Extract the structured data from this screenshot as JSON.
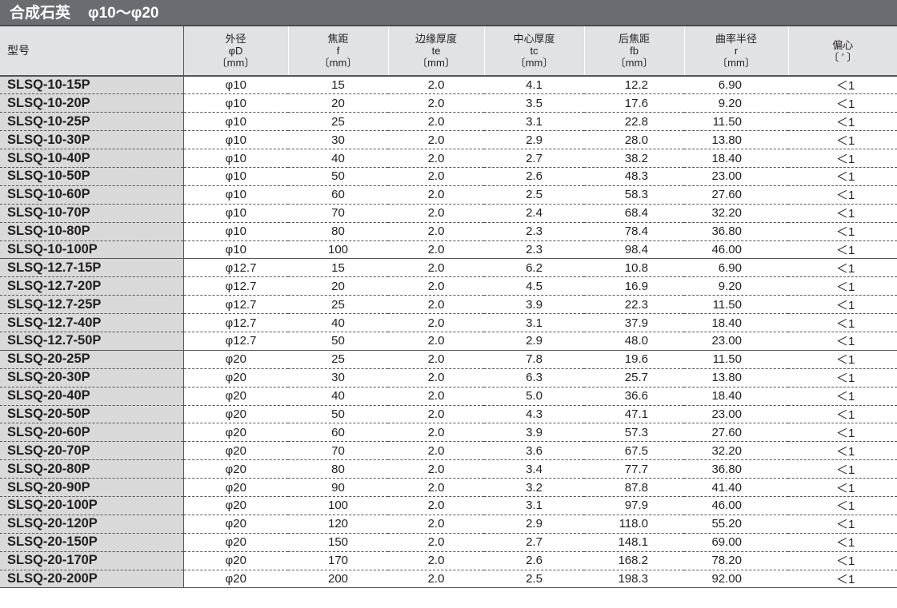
{
  "title": {
    "material": "合成石英",
    "range": "φ10～φ20"
  },
  "headers": [
    {
      "line1": "型号"
    },
    {
      "line1": "外径",
      "line2": "φD",
      "line3": "〔mm〕"
    },
    {
      "line1": "焦距",
      "line2": "f",
      "line3": "〔mm〕"
    },
    {
      "line1": "边缘厚度",
      "line2": "te",
      "line3": "〔mm〕"
    },
    {
      "line1": "中心厚度",
      "line2": "tc",
      "line3": "〔mm〕"
    },
    {
      "line1": "后焦距",
      "line2": "fb",
      "line3": "〔mm〕"
    },
    {
      "line1": "曲率半径",
      "line2": "r",
      "line3": "〔mm〕"
    },
    {
      "line1": "偏心",
      "line2": "〔 ′ 〕"
    }
  ],
  "rows": [
    [
      "SLSQ-10-15P",
      "φ10",
      "15",
      "2.0",
      "4.1",
      "12.2",
      "6.90",
      "＜1"
    ],
    [
      "SLSQ-10-20P",
      "φ10",
      "20",
      "2.0",
      "3.5",
      "17.6",
      "9.20",
      "＜1"
    ],
    [
      "SLSQ-10-25P",
      "φ10",
      "25",
      "2.0",
      "3.1",
      "22.8",
      "11.50",
      "＜1"
    ],
    [
      "SLSQ-10-30P",
      "φ10",
      "30",
      "2.0",
      "2.9",
      "28.0",
      "13.80",
      "＜1"
    ],
    [
      "SLSQ-10-40P",
      "φ10",
      "40",
      "2.0",
      "2.7",
      "38.2",
      "18.40",
      "＜1"
    ],
    [
      "SLSQ-10-50P",
      "φ10",
      "50",
      "2.0",
      "2.6",
      "48.3",
      "23.00",
      "＜1"
    ],
    [
      "SLSQ-10-60P",
      "φ10",
      "60",
      "2.0",
      "2.5",
      "58.3",
      "27.60",
      "＜1"
    ],
    [
      "SLSQ-10-70P",
      "φ10",
      "70",
      "2.0",
      "2.4",
      "68.4",
      "32.20",
      "＜1"
    ],
    [
      "SLSQ-10-80P",
      "φ10",
      "80",
      "2.0",
      "2.3",
      "78.4",
      "36.80",
      "＜1"
    ],
    [
      "SLSQ-10-100P",
      "φ10",
      "100",
      "2.0",
      "2.3",
      "98.4",
      "46.00",
      "＜1"
    ],
    [
      "SLSQ-12.7-15P",
      "φ12.7",
      "15",
      "2.0",
      "6.2",
      "10.8",
      "6.90",
      "＜1"
    ],
    [
      "SLSQ-12.7-20P",
      "φ12.7",
      "20",
      "2.0",
      "4.5",
      "16.9",
      "9.20",
      "＜1"
    ],
    [
      "SLSQ-12.7-25P",
      "φ12.7",
      "25",
      "2.0",
      "3.9",
      "22.3",
      "11.50",
      "＜1"
    ],
    [
      "SLSQ-12.7-40P",
      "φ12.7",
      "40",
      "2.0",
      "3.1",
      "37.9",
      "18.40",
      "＜1"
    ],
    [
      "SLSQ-12.7-50P",
      "φ12.7",
      "50",
      "2.0",
      "2.9",
      "48.0",
      "23.00",
      "＜1"
    ],
    [
      "SLSQ-20-25P",
      "φ20",
      "25",
      "2.0",
      "7.8",
      "19.6",
      "11.50",
      "＜1"
    ],
    [
      "SLSQ-20-30P",
      "φ20",
      "30",
      "2.0",
      "6.3",
      "25.7",
      "13.80",
      "＜1"
    ],
    [
      "SLSQ-20-40P",
      "φ20",
      "40",
      "2.0",
      "5.0",
      "36.6",
      "18.40",
      "＜1"
    ],
    [
      "SLSQ-20-50P",
      "φ20",
      "50",
      "2.0",
      "4.3",
      "47.1",
      "23.00",
      "＜1"
    ],
    [
      "SLSQ-20-60P",
      "φ20",
      "60",
      "2.0",
      "3.9",
      "57.3",
      "27.60",
      "＜1"
    ],
    [
      "SLSQ-20-70P",
      "φ20",
      "70",
      "2.0",
      "3.6",
      "67.5",
      "32.20",
      "＜1"
    ],
    [
      "SLSQ-20-80P",
      "φ20",
      "80",
      "2.0",
      "3.4",
      "77.7",
      "36.80",
      "＜1"
    ],
    [
      "SLSQ-20-90P",
      "φ20",
      "90",
      "2.0",
      "3.2",
      "87.8",
      "41.40",
      "＜1"
    ],
    [
      "SLSQ-20-100P",
      "φ20",
      "100",
      "2.0",
      "3.1",
      "97.9",
      "46.00",
      "＜1"
    ],
    [
      "SLSQ-20-120P",
      "φ20",
      "120",
      "2.0",
      "2.9",
      "118.0",
      "55.20",
      "＜1"
    ],
    [
      "SLSQ-20-150P",
      "φ20",
      "150",
      "2.0",
      "2.7",
      "148.1",
      "69.00",
      "＜1"
    ],
    [
      "SLSQ-20-170P",
      "φ20",
      "170",
      "2.0",
      "2.6",
      "168.2",
      "78.20",
      "＜1"
    ],
    [
      "SLSQ-20-200P",
      "φ20",
      "200",
      "2.0",
      "2.5",
      "198.3",
      "92.00",
      "＜1"
    ]
  ]
}
